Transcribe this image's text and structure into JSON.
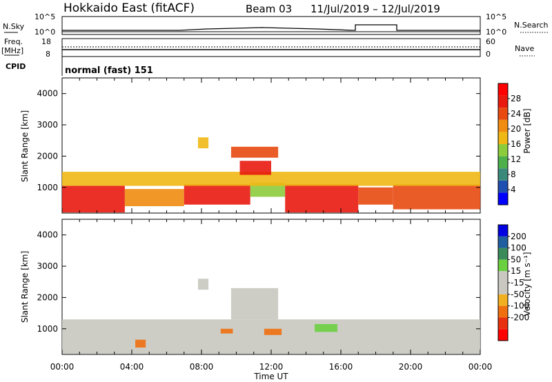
{
  "header": {
    "site": "Hokkaido East (fitACF)",
    "beam": "Beam 03",
    "dates": "11/Jul/2019 – 12/Jul/2019"
  },
  "top_panels": {
    "nsky_label": "N.Sky",
    "nsearch_label": "N.Search",
    "nsky_ticks": [
      "10^5",
      "10^0"
    ],
    "freq_label": "Freq.",
    "freq_unit": "[MHz]",
    "freq_ticks": [
      "18",
      "8"
    ],
    "nave_label": "Nave",
    "nave_ticks": [
      "60",
      "0"
    ],
    "cpid_label": "CPID",
    "cpid_text": "normal (fast) 151"
  },
  "colors": {
    "power_scale": [
      "#0000ff",
      "#1f4fb0",
      "#3a8a7c",
      "#4db04a",
      "#8ccc3c",
      "#f0b814",
      "#f08c10",
      "#e84a10",
      "#e81a10",
      "#ff0000"
    ],
    "velocity_scale": [
      "#ff0000",
      "#e83010",
      "#f07010",
      "#f0b020",
      "#c8c8c0",
      "#c8c8c0",
      "#6ad040",
      "#3a8a5a",
      "#1f5fa0",
      "#0000e0"
    ]
  },
  "chart_data": [
    {
      "type": "heatmap",
      "panel": "power",
      "ylabel": "Slant Range [km]",
      "yticks": [
        "1000",
        "2000",
        "3000",
        "4000"
      ],
      "ylim": [
        180,
        4500
      ],
      "xticks": [
        "00:00",
        "04:00",
        "08:00",
        "12:00",
        "16:00",
        "20:00",
        "00:00"
      ],
      "colorbar_label": "Power [dB]",
      "colorbar_ticks": [
        "4",
        "8",
        "12",
        "16",
        "20",
        "24",
        "28"
      ],
      "colorbar_range": [
        0,
        32
      ],
      "regions": [
        {
          "t0": 0.0,
          "t1": 3.6,
          "r0": 200,
          "r1": 1050,
          "value": 28
        },
        {
          "t0": 3.6,
          "t1": 7.0,
          "r0": 400,
          "r1": 950,
          "value": 22
        },
        {
          "t0": 7.0,
          "t1": 10.8,
          "r0": 450,
          "r1": 1100,
          "value": 27
        },
        {
          "t0": 10.8,
          "t1": 12.8,
          "r0": 700,
          "r1": 1150,
          "value": 14
        },
        {
          "t0": 12.8,
          "t1": 17.0,
          "r0": 200,
          "r1": 1100,
          "value": 28
        },
        {
          "t0": 17.0,
          "t1": 19.0,
          "r0": 450,
          "r1": 1000,
          "value": 25
        },
        {
          "t0": 19.0,
          "t1": 24.0,
          "r0": 300,
          "r1": 1100,
          "value": 24
        },
        {
          "t0": 0.0,
          "t1": 24.0,
          "r0": 1050,
          "r1": 1500,
          "value": 16
        },
        {
          "t0": 9.7,
          "t1": 12.4,
          "r0": 1950,
          "r1": 2300,
          "value": 24
        },
        {
          "t0": 10.2,
          "t1": 12.0,
          "r0": 1400,
          "r1": 1850,
          "value": 26
        },
        {
          "t0": 7.8,
          "t1": 8.4,
          "r0": 2250,
          "r1": 2600,
          "value": 18
        }
      ]
    },
    {
      "type": "heatmap",
      "panel": "velocity",
      "ylabel": "Slant Range [km]",
      "yticks": [
        "1000",
        "2000",
        "3000",
        "4000"
      ],
      "ylim": [
        180,
        4500
      ],
      "xticks": [
        "00:00",
        "04:00",
        "08:00",
        "12:00",
        "16:00",
        "20:00",
        "00:00"
      ],
      "xlabel": "Time UT",
      "colorbar_label": "Velocity [m s⁻¹]",
      "colorbar_ticks": [
        "200",
        "100",
        "50",
        "15",
        "-15",
        "-50",
        "-100",
        "-200"
      ],
      "regions": [
        {
          "t0": 0.0,
          "t1": 24.0,
          "r0": 200,
          "r1": 1300,
          "value": 0
        },
        {
          "t0": 9.7,
          "t1": 12.4,
          "r0": 1300,
          "r1": 2300,
          "value": 0
        },
        {
          "t0": 7.8,
          "t1": 8.4,
          "r0": 2250,
          "r1": 2600,
          "value": 0
        },
        {
          "t0": 11.6,
          "t1": 12.6,
          "r0": 800,
          "r1": 1000,
          "value": -60
        },
        {
          "t0": 14.5,
          "t1": 15.8,
          "r0": 900,
          "r1": 1150,
          "value": 25
        },
        {
          "t0": 4.2,
          "t1": 4.8,
          "r0": 400,
          "r1": 650,
          "value": -60
        },
        {
          "t0": 9.1,
          "t1": 9.8,
          "r0": 850,
          "r1": 1000,
          "value": -40
        }
      ]
    }
  ]
}
